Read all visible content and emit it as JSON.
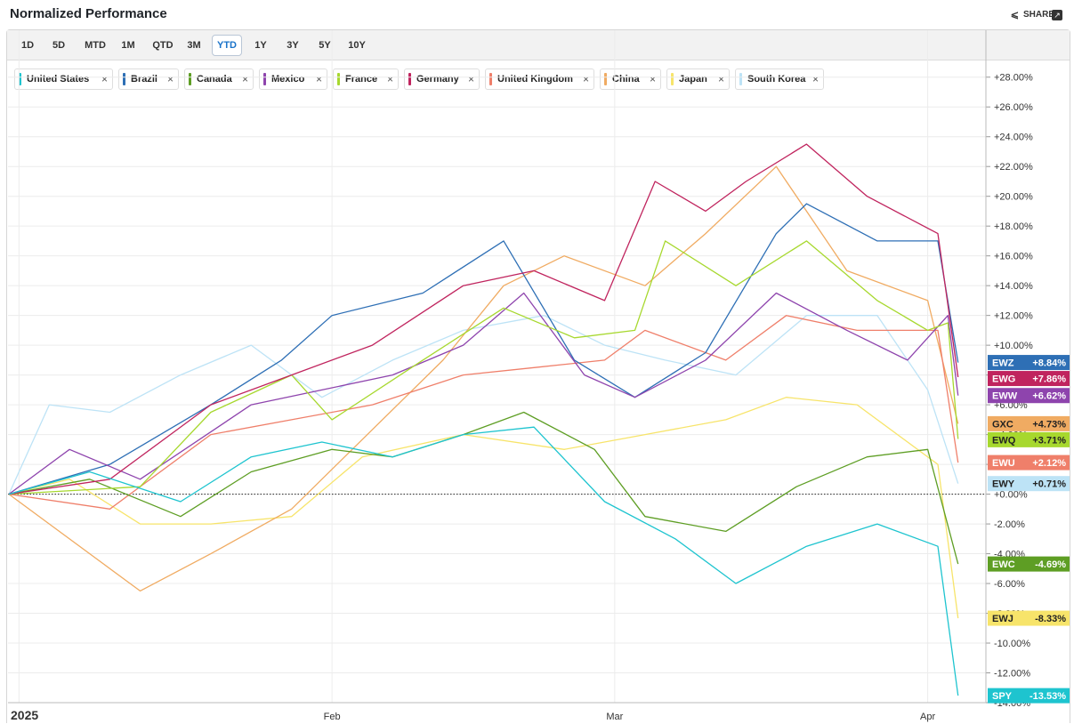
{
  "header": {
    "title": "Normalized Performance",
    "share_label": "SHARE"
  },
  "range_buttons": [
    "1D",
    "5D",
    "MTD",
    "1M",
    "QTD",
    "3M",
    "YTD",
    "1Y",
    "3Y",
    "5Y",
    "10Y"
  ],
  "active_range": "YTD",
  "chart_data": {
    "type": "line",
    "ylabel": "",
    "y_range": [
      -14,
      29
    ],
    "y_ticks": [
      {
        "v": 28,
        "label": "+28.00%"
      },
      {
        "v": 26,
        "label": "+26.00%"
      },
      {
        "v": 24,
        "label": "+24.00%"
      },
      {
        "v": 22,
        "label": "+22.00%"
      },
      {
        "v": 20,
        "label": "+20.00%"
      },
      {
        "v": 18,
        "label": "+18.00%"
      },
      {
        "v": 16,
        "label": "+16.00%"
      },
      {
        "v": 14,
        "label": "+14.00%"
      },
      {
        "v": 12,
        "label": "+12.00%"
      },
      {
        "v": 10,
        "label": "+10.00%"
      },
      {
        "v": 8,
        "label": "+8.00%"
      },
      {
        "v": 6,
        "label": "+6.00%"
      },
      {
        "v": 4,
        "label": "+4.00%"
      },
      {
        "v": 2,
        "label": "+2.00%"
      },
      {
        "v": 0,
        "label": "+0.00%"
      },
      {
        "v": -2,
        "label": "-2.00%"
      },
      {
        "v": -4,
        "label": "-4.00%"
      },
      {
        "v": -6,
        "label": "-6.00%"
      },
      {
        "v": -8,
        "label": "-8.00%"
      },
      {
        "v": -10,
        "label": "-10.00%"
      },
      {
        "v": -12,
        "label": "-12.00%"
      },
      {
        "v": -14,
        "label": "-14.00%"
      }
    ],
    "x_labels": [
      {
        "date": "2025-01-01",
        "label": "2025"
      },
      {
        "date": "2025-02-01",
        "label": "Feb"
      },
      {
        "date": "2025-03-01",
        "label": "Mar"
      },
      {
        "date": "2025-04-01",
        "label": "Apr"
      }
    ],
    "x_range": [
      "2024-12-31",
      "2025-04-05"
    ],
    "zero_line": true,
    "series": [
      {
        "name": "United States",
        "ticker": "SPY",
        "color": "#1ec4cf",
        "final_label": "-13.53%",
        "points": [
          [
            "2024-12-31",
            0
          ],
          [
            "2025-01-08",
            1.5
          ],
          [
            "2025-01-17",
            -0.5
          ],
          [
            "2025-01-24",
            2.5
          ],
          [
            "2025-01-31",
            3.5
          ],
          [
            "2025-02-07",
            2.5
          ],
          [
            "2025-02-14",
            4
          ],
          [
            "2025-02-21",
            4.5
          ],
          [
            "2025-02-28",
            -0.5
          ],
          [
            "2025-03-07",
            -3
          ],
          [
            "2025-03-13",
            -6
          ],
          [
            "2025-03-20",
            -3.5
          ],
          [
            "2025-03-27",
            -2
          ],
          [
            "2025-04-02",
            -3.5
          ],
          [
            "2025-04-04",
            -13.53
          ]
        ]
      },
      {
        "name": "Brazil",
        "ticker": "EWZ",
        "color": "#2e6fb5",
        "final_label": "+8.84%",
        "points": [
          [
            "2024-12-31",
            0
          ],
          [
            "2025-01-10",
            2
          ],
          [
            "2025-01-20",
            6
          ],
          [
            "2025-01-27",
            9
          ],
          [
            "2025-02-01",
            12
          ],
          [
            "2025-02-10",
            13.5
          ],
          [
            "2025-02-18",
            17
          ],
          [
            "2025-02-25",
            9
          ],
          [
            "2025-03-03",
            6.5
          ],
          [
            "2025-03-10",
            9.5
          ],
          [
            "2025-03-17",
            17.5
          ],
          [
            "2025-03-20",
            19.5
          ],
          [
            "2025-03-27",
            17
          ],
          [
            "2025-04-02",
            17
          ],
          [
            "2025-04-04",
            8.84
          ]
        ]
      },
      {
        "name": "Canada",
        "ticker": "EWC",
        "color": "#5e9e24",
        "final_label": "-4.69%",
        "points": [
          [
            "2024-12-31",
            0
          ],
          [
            "2025-01-08",
            1
          ],
          [
            "2025-01-17",
            -1.5
          ],
          [
            "2025-01-24",
            1.5
          ],
          [
            "2025-02-01",
            3
          ],
          [
            "2025-02-07",
            2.5
          ],
          [
            "2025-02-14",
            4
          ],
          [
            "2025-02-20",
            5.5
          ],
          [
            "2025-02-27",
            3
          ],
          [
            "2025-03-04",
            -1.5
          ],
          [
            "2025-03-12",
            -2.5
          ],
          [
            "2025-03-19",
            0.5
          ],
          [
            "2025-03-26",
            2.5
          ],
          [
            "2025-04-01",
            3
          ],
          [
            "2025-04-04",
            -4.69
          ]
        ]
      },
      {
        "name": "Mexico",
        "ticker": "EWW",
        "color": "#8e44ad",
        "final_label": "+6.62%",
        "points": [
          [
            "2024-12-31",
            0
          ],
          [
            "2025-01-06",
            3
          ],
          [
            "2025-01-13",
            1
          ],
          [
            "2025-01-24",
            6
          ],
          [
            "2025-01-31",
            7
          ],
          [
            "2025-02-07",
            8
          ],
          [
            "2025-02-14",
            10
          ],
          [
            "2025-02-20",
            13.5
          ],
          [
            "2025-02-26",
            8
          ],
          [
            "2025-03-03",
            6.5
          ],
          [
            "2025-03-10",
            9
          ],
          [
            "2025-03-17",
            13.5
          ],
          [
            "2025-03-24",
            11
          ],
          [
            "2025-03-30",
            9
          ],
          [
            "2025-04-03",
            12
          ],
          [
            "2025-04-04",
            6.62
          ]
        ]
      },
      {
        "name": "France",
        "ticker": "EWQ",
        "color": "#a7d82e",
        "final_label": "+3.71%",
        "points": [
          [
            "2024-12-31",
            0
          ],
          [
            "2025-01-13",
            0.5
          ],
          [
            "2025-01-20",
            5.5
          ],
          [
            "2025-01-28",
            8
          ],
          [
            "2025-02-01",
            5
          ],
          [
            "2025-02-10",
            9
          ],
          [
            "2025-02-18",
            12.5
          ],
          [
            "2025-02-25",
            10.5
          ],
          [
            "2025-03-03",
            11
          ],
          [
            "2025-03-06",
            17
          ],
          [
            "2025-03-13",
            14
          ],
          [
            "2025-03-20",
            17
          ],
          [
            "2025-03-27",
            13
          ],
          [
            "2025-04-01",
            11
          ],
          [
            "2025-04-03",
            11.5
          ],
          [
            "2025-04-04",
            3.71
          ]
        ]
      },
      {
        "name": "Germany",
        "ticker": "EWG",
        "color": "#c0245e",
        "final_label": "+7.86%",
        "points": [
          [
            "2024-12-31",
            0
          ],
          [
            "2025-01-10",
            1
          ],
          [
            "2025-01-20",
            6
          ],
          [
            "2025-01-28",
            8
          ],
          [
            "2025-02-05",
            10
          ],
          [
            "2025-02-14",
            14
          ],
          [
            "2025-02-21",
            15
          ],
          [
            "2025-02-28",
            13
          ],
          [
            "2025-03-05",
            21
          ],
          [
            "2025-03-10",
            19
          ],
          [
            "2025-03-14",
            21
          ],
          [
            "2025-03-20",
            23.5
          ],
          [
            "2025-03-26",
            20
          ],
          [
            "2025-04-02",
            17.5
          ],
          [
            "2025-04-04",
            7.86
          ]
        ]
      },
      {
        "name": "United Kingdom",
        "ticker": "EWU",
        "color": "#ef7f6a",
        "final_label": "+2.12%",
        "points": [
          [
            "2024-12-31",
            0
          ],
          [
            "2025-01-10",
            -1
          ],
          [
            "2025-01-20",
            4
          ],
          [
            "2025-01-28",
            5
          ],
          [
            "2025-02-05",
            6
          ],
          [
            "2025-02-14",
            8
          ],
          [
            "2025-02-21",
            8.5
          ],
          [
            "2025-02-28",
            9
          ],
          [
            "2025-03-04",
            11
          ],
          [
            "2025-03-12",
            9
          ],
          [
            "2025-03-18",
            12
          ],
          [
            "2025-03-25",
            11
          ],
          [
            "2025-04-02",
            11
          ],
          [
            "2025-04-04",
            2.12
          ]
        ]
      },
      {
        "name": "China",
        "ticker": "GXC",
        "color": "#f0ab62",
        "final_label": "+4.73%",
        "points": [
          [
            "2024-12-31",
            0
          ],
          [
            "2025-01-04",
            -2
          ],
          [
            "2025-01-13",
            -6.5
          ],
          [
            "2025-01-20",
            -4
          ],
          [
            "2025-01-28",
            -1
          ],
          [
            "2025-02-03",
            3
          ],
          [
            "2025-02-12",
            9
          ],
          [
            "2025-02-18",
            14
          ],
          [
            "2025-02-24",
            16
          ],
          [
            "2025-03-04",
            14
          ],
          [
            "2025-03-10",
            17.5
          ],
          [
            "2025-03-17",
            22
          ],
          [
            "2025-03-24",
            15
          ],
          [
            "2025-04-01",
            13
          ],
          [
            "2025-04-04",
            4.73
          ]
        ]
      },
      {
        "name": "Japan",
        "ticker": "EWJ",
        "color": "#f7e46a",
        "final_label": "-8.33%",
        "points": [
          [
            "2024-12-31",
            0
          ],
          [
            "2025-01-06",
            1
          ],
          [
            "2025-01-13",
            -2
          ],
          [
            "2025-01-20",
            -2
          ],
          [
            "2025-01-28",
            -1.5
          ],
          [
            "2025-02-04",
            2.5
          ],
          [
            "2025-02-14",
            4
          ],
          [
            "2025-02-24",
            3
          ],
          [
            "2025-03-04",
            4
          ],
          [
            "2025-03-12",
            5
          ],
          [
            "2025-03-18",
            6.5
          ],
          [
            "2025-03-25",
            6
          ],
          [
            "2025-04-02",
            2
          ],
          [
            "2025-04-04",
            -8.33
          ]
        ]
      },
      {
        "name": "South Korea",
        "ticker": "EWY",
        "color": "#bde3f6",
        "final_label": "+0.71%",
        "points": [
          [
            "2024-12-31",
            0
          ],
          [
            "2025-01-04",
            6
          ],
          [
            "2025-01-10",
            5.5
          ],
          [
            "2025-01-17",
            8
          ],
          [
            "2025-01-24",
            10
          ],
          [
            "2025-01-31",
            6.5
          ],
          [
            "2025-02-07",
            9
          ],
          [
            "2025-02-14",
            11
          ],
          [
            "2025-02-22",
            12
          ],
          [
            "2025-02-28",
            10
          ],
          [
            "2025-03-06",
            9
          ],
          [
            "2025-03-13",
            8
          ],
          [
            "2025-03-20",
            12
          ],
          [
            "2025-03-27",
            12
          ],
          [
            "2025-04-01",
            7
          ],
          [
            "2025-04-04",
            0.71
          ]
        ]
      }
    ]
  }
}
